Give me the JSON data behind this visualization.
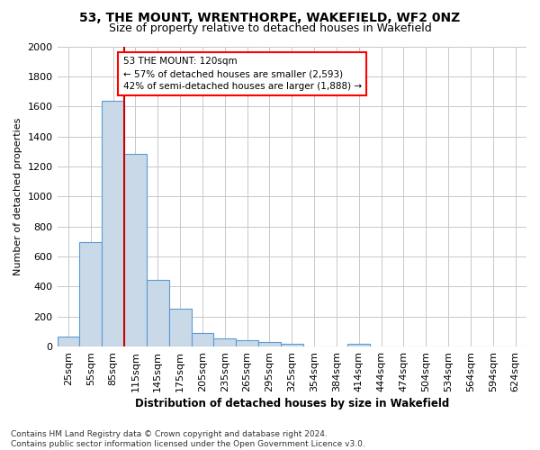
{
  "title1": "53, THE MOUNT, WRENTHORPE, WAKEFIELD, WF2 0NZ",
  "title2": "Size of property relative to detached houses in Wakefield",
  "xlabel": "Distribution of detached houses by size in Wakefield",
  "ylabel": "Number of detached properties",
  "footnote": "Contains HM Land Registry data © Crown copyright and database right 2024.\nContains public sector information licensed under the Open Government Licence v3.0.",
  "bar_categories": [
    "25sqm",
    "55sqm",
    "85sqm",
    "115sqm",
    "145sqm",
    "175sqm",
    "205sqm",
    "235sqm",
    "265sqm",
    "295sqm",
    "325sqm",
    "354sqm",
    "384sqm",
    "414sqm",
    "444sqm",
    "474sqm",
    "504sqm",
    "534sqm",
    "564sqm",
    "594sqm",
    "624sqm"
  ],
  "bar_values": [
    65,
    695,
    1635,
    1285,
    445,
    255,
    90,
    55,
    40,
    30,
    18,
    0,
    0,
    18,
    0,
    0,
    0,
    0,
    0,
    0,
    0
  ],
  "bar_color": "#c9d9e8",
  "bar_edgecolor": "#5b9bd5",
  "ylim": [
    0,
    2000
  ],
  "yticks": [
    0,
    200,
    400,
    600,
    800,
    1000,
    1200,
    1400,
    1600,
    1800,
    2000
  ],
  "property_sqm_label": "53 THE MOUNT: 120sqm",
  "annotation_line1": "← 57% of detached houses are smaller (2,593)",
  "annotation_line2": "42% of semi-detached houses are larger (1,888) →",
  "vline_color": "#cc0000",
  "bg_color": "#ffffff",
  "grid_color": "#c8c8c8",
  "title1_fontsize": 10,
  "title2_fontsize": 9,
  "xlabel_fontsize": 8.5,
  "ylabel_fontsize": 8,
  "tick_fontsize": 8,
  "annot_fontsize": 7.5,
  "footnote_fontsize": 6.5
}
